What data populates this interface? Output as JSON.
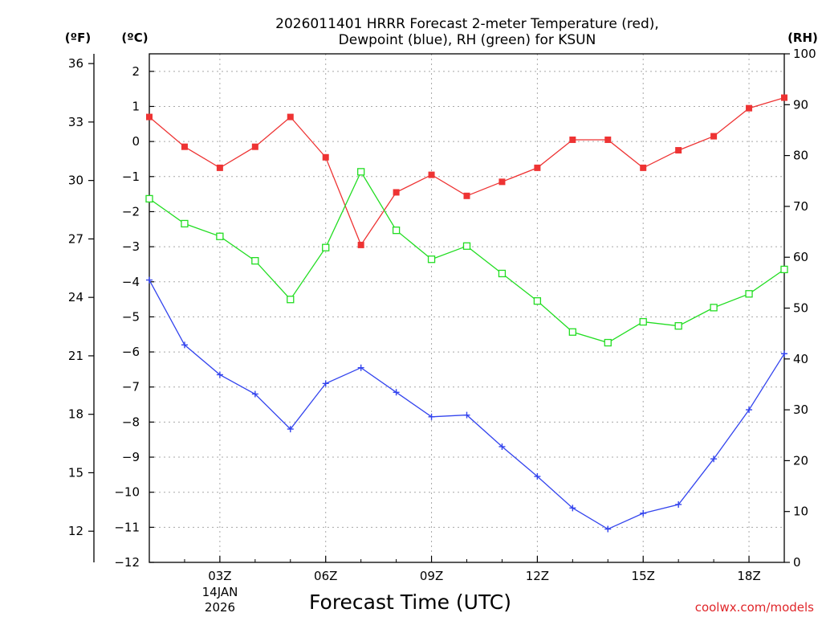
{
  "chart_data": {
    "type": "line",
    "title_lines": [
      "2026011401 HRRR Forecast 2-meter Temperature (red),",
      "Dewpoint (blue), RH (green) for KSUN"
    ],
    "xlabel": "Forecast Time (UTC)",
    "date_label": [
      "14JAN",
      "2026"
    ],
    "credit": "coolwx.com/models",
    "units": {
      "fahrenheit": "(ºF)",
      "celsius": "(ºC)",
      "rh": "(RH)"
    },
    "x_range": [
      1,
      19
    ],
    "x_ticks": [
      {
        "hour": 3,
        "label": "03Z"
      },
      {
        "hour": 6,
        "label": "06Z"
      },
      {
        "hour": 9,
        "label": "09Z"
      },
      {
        "hour": 12,
        "label": "12Z"
      },
      {
        "hour": 15,
        "label": "15Z"
      },
      {
        "hour": 18,
        "label": "18Z"
      }
    ],
    "x_minor_ticks": [
      1,
      2,
      4,
      5,
      7,
      8,
      10,
      11,
      13,
      14,
      16,
      17,
      19
    ],
    "celsius_axis": {
      "min": -12,
      "max": 2.5,
      "ticks": [
        2,
        1,
        0,
        -1,
        -2,
        -3,
        -4,
        -5,
        -6,
        -7,
        -8,
        -9,
        -10,
        -11,
        -12
      ],
      "tick_labels": [
        "2",
        "1",
        "0",
        "−1",
        "−2",
        "−3",
        "−4",
        "−5",
        "−6",
        "−7",
        "−8",
        "−9",
        "−10",
        "−11",
        "−12"
      ]
    },
    "fahrenheit_axis": {
      "ticks": [
        36,
        33,
        30,
        27,
        24,
        21,
        18,
        15,
        12
      ],
      "tick_labels": [
        "36",
        "33",
        "30",
        "27",
        "24",
        "21",
        "18",
        "15",
        "12"
      ]
    },
    "rh_axis": {
      "min": 0,
      "max": 100,
      "ticks": [
        100,
        90,
        80,
        70,
        60,
        50,
        40,
        30,
        20,
        10,
        0
      ],
      "tick_labels": [
        "100",
        "90",
        "80",
        "70",
        "60",
        "50",
        "40",
        "30",
        "20",
        "10",
        "0"
      ]
    },
    "hours": [
      1,
      2,
      3,
      4,
      5,
      6,
      7,
      8,
      9,
      10,
      11,
      12,
      13,
      14,
      15,
      16,
      17,
      18,
      19
    ],
    "series": [
      {
        "name": "Temperature",
        "axis": "celsius",
        "color": "#ee3333",
        "marker": "filled-square",
        "values": [
          0.7,
          -0.15,
          -0.75,
          -0.15,
          0.7,
          -0.45,
          -2.95,
          -1.45,
          -0.95,
          -1.55,
          -1.15,
          -0.75,
          0.05,
          0.05,
          -0.75,
          -0.25,
          0.15,
          0.95,
          1.25
        ]
      },
      {
        "name": "Dewpoint",
        "axis": "celsius",
        "color": "#3344ee",
        "marker": "plus",
        "values": [
          -3.95,
          -5.8,
          -6.65,
          -7.2,
          -8.2,
          -6.9,
          -6.45,
          -7.15,
          -7.85,
          -7.8,
          -8.7,
          -9.55,
          -10.45,
          -11.05,
          -10.6,
          -10.35,
          -9.05,
          -7.65,
          -6.05
        ]
      },
      {
        "name": "RH",
        "axis": "rh",
        "color": "#22dd22",
        "marker": "open-square",
        "values": [
          71.5,
          66.6,
          64.1,
          59.3,
          51.7,
          61.9,
          76.8,
          65.3,
          59.6,
          62.2,
          56.8,
          51.4,
          45.3,
          43.2,
          47.3,
          46.5,
          50.1,
          52.8,
          57.6
        ]
      }
    ]
  }
}
